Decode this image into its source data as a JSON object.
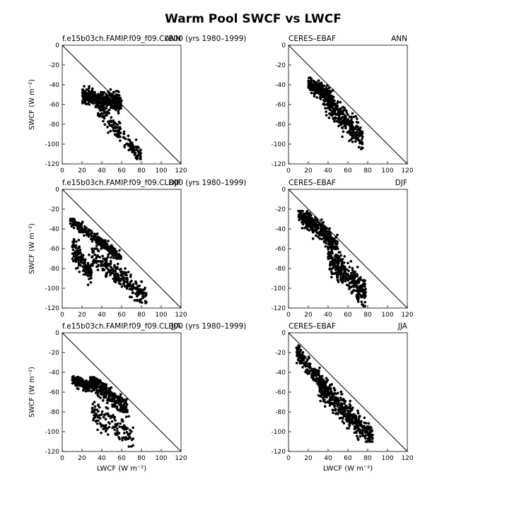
{
  "title": "Warm Pool SWCF vs LWCF",
  "axis_labels": {
    "x": "LWCF  (W m⁻²)",
    "y": "SWCF  (W m⁻²)"
  },
  "colors": {
    "points": "#000000",
    "one_to_one_line": "#000000",
    "frame": "#000000",
    "background": "#ffffff"
  },
  "chart_data": [
    {
      "type": "scatter",
      "left_title": "f.e15b03ch.FAMIP.f09_f09.CLB00 (yrs 1980–1999)",
      "right_title": "ANN",
      "xlabel": "",
      "ylabel": "SWCF  (W m⁻²)",
      "xlim": [
        0,
        120
      ],
      "ylim": [
        -120,
        0
      ],
      "xticks": [
        "0",
        "20",
        "40",
        "60",
        "80",
        "100",
        "120"
      ],
      "yticks": [
        "0",
        "-20",
        "-40",
        "-60",
        "-80",
        "-100",
        "-120"
      ],
      "reference_line": "y = -x",
      "clusters": [
        {
          "x": [
            20,
            60
          ],
          "y": [
            -70,
            -40
          ],
          "n": 420,
          "slope": -0.15,
          "spread": 6
        },
        {
          "x": [
            35,
            80
          ],
          "y": [
            -115,
            -60
          ],
          "n": 160,
          "slope": -1.1,
          "spread": 7
        }
      ]
    },
    {
      "type": "scatter",
      "left_title": "CERES–EBAF",
      "right_title": "ANN",
      "xlabel": "",
      "ylabel": "",
      "xlim": [
        0,
        120
      ],
      "ylim": [
        -120,
        0
      ],
      "xticks": [
        "0",
        "20",
        "40",
        "60",
        "80",
        "100",
        "120"
      ],
      "yticks": [
        "0",
        "-20",
        "-40",
        "-60",
        "-80",
        "-100",
        "-120"
      ],
      "reference_line": "y = -x",
      "clusters": [
        {
          "x": [
            20,
            45
          ],
          "y": [
            -60,
            -32
          ],
          "n": 240,
          "slope": -0.6,
          "spread": 5
        },
        {
          "x": [
            35,
            75
          ],
          "y": [
            -105,
            -45
          ],
          "n": 300,
          "slope": -1.0,
          "spread": 9
        }
      ]
    },
    {
      "type": "scatter",
      "left_title": "f.e15b03ch.FAMIP.f09_f09.CLB00 (yrs 1980–1999)",
      "right_title": "DJF",
      "xlabel": "",
      "ylabel": "SWCF  (W m⁻²)",
      "xlim": [
        0,
        120
      ],
      "ylim": [
        -120,
        0
      ],
      "xticks": [
        "0",
        "20",
        "40",
        "60",
        "80",
        "100",
        "120"
      ],
      "yticks": [
        "0",
        "-20",
        "-40",
        "-60",
        "-80",
        "-100",
        "-120"
      ],
      "reference_line": "y = -x",
      "clusters": [
        {
          "x": [
            8,
            60
          ],
          "y": [
            -70,
            -30
          ],
          "n": 260,
          "slope": -0.75,
          "spread": 4
        },
        {
          "x": [
            10,
            30
          ],
          "y": [
            -100,
            -45
          ],
          "n": 140,
          "slope": -1.5,
          "spread": 10
        },
        {
          "x": [
            30,
            85
          ],
          "y": [
            -115,
            -60
          ],
          "n": 260,
          "slope": -0.8,
          "spread": 8
        }
      ]
    },
    {
      "type": "scatter",
      "left_title": "CERES–EBAF",
      "right_title": "DJF",
      "xlabel": "",
      "ylabel": "",
      "xlim": [
        0,
        120
      ],
      "ylim": [
        -120,
        0
      ],
      "xticks": [
        "0",
        "20",
        "40",
        "60",
        "80",
        "100",
        "120"
      ],
      "yticks": [
        "0",
        "-20",
        "-40",
        "-60",
        "-80",
        "-100",
        "-120"
      ],
      "reference_line": "y = -x",
      "clusters": [
        {
          "x": [
            10,
            50
          ],
          "y": [
            -60,
            -22
          ],
          "n": 320,
          "slope": -0.85,
          "spread": 7
        },
        {
          "x": [
            40,
            78
          ],
          "y": [
            -118,
            -55
          ],
          "n": 320,
          "slope": -1.0,
          "spread": 10
        }
      ]
    },
    {
      "type": "scatter",
      "left_title": "f.e15b03ch.FAMIP.f09_f09.CLB00 (yrs 1980–1999)",
      "right_title": "JJA",
      "xlabel": "LWCF  (W m⁻²)",
      "ylabel": "SWCF  (W m⁻²)",
      "xlim": [
        0,
        120
      ],
      "ylim": [
        -120,
        0
      ],
      "xticks": [
        "0",
        "20",
        "40",
        "60",
        "80",
        "100",
        "120"
      ],
      "yticks": [
        "0",
        "-20",
        "-40",
        "-60",
        "-80",
        "-100",
        "-120"
      ],
      "reference_line": "y = -x",
      "clusters": [
        {
          "x": [
            10,
            28
          ],
          "y": [
            -62,
            -40
          ],
          "n": 120,
          "slope": -0.4,
          "spread": 4
        },
        {
          "x": [
            28,
            66
          ],
          "y": [
            -80,
            -45
          ],
          "n": 320,
          "slope": -0.75,
          "spread": 6
        },
        {
          "x": [
            30,
            72
          ],
          "y": [
            -115,
            -70
          ],
          "n": 140,
          "slope": -0.5,
          "spread": 10
        }
      ]
    },
    {
      "type": "scatter",
      "left_title": "CERES–EBAF",
      "right_title": "JJA",
      "xlabel": "LWCF  (W m⁻²)",
      "ylabel": "",
      "xlim": [
        0,
        120
      ],
      "ylim": [
        -120,
        0
      ],
      "xticks": [
        "0",
        "20",
        "40",
        "60",
        "80",
        "100",
        "120"
      ],
      "yticks": [
        "0",
        "-20",
        "-40",
        "-60",
        "-80",
        "-100",
        "-120"
      ],
      "reference_line": "y = -x",
      "clusters": [
        {
          "x": [
            8,
            40
          ],
          "y": [
            -65,
            -12
          ],
          "n": 200,
          "slope": -1.25,
          "spread": 7
        },
        {
          "x": [
            30,
            85
          ],
          "y": [
            -110,
            -50
          ],
          "n": 420,
          "slope": -1.0,
          "spread": 9
        }
      ]
    }
  ]
}
